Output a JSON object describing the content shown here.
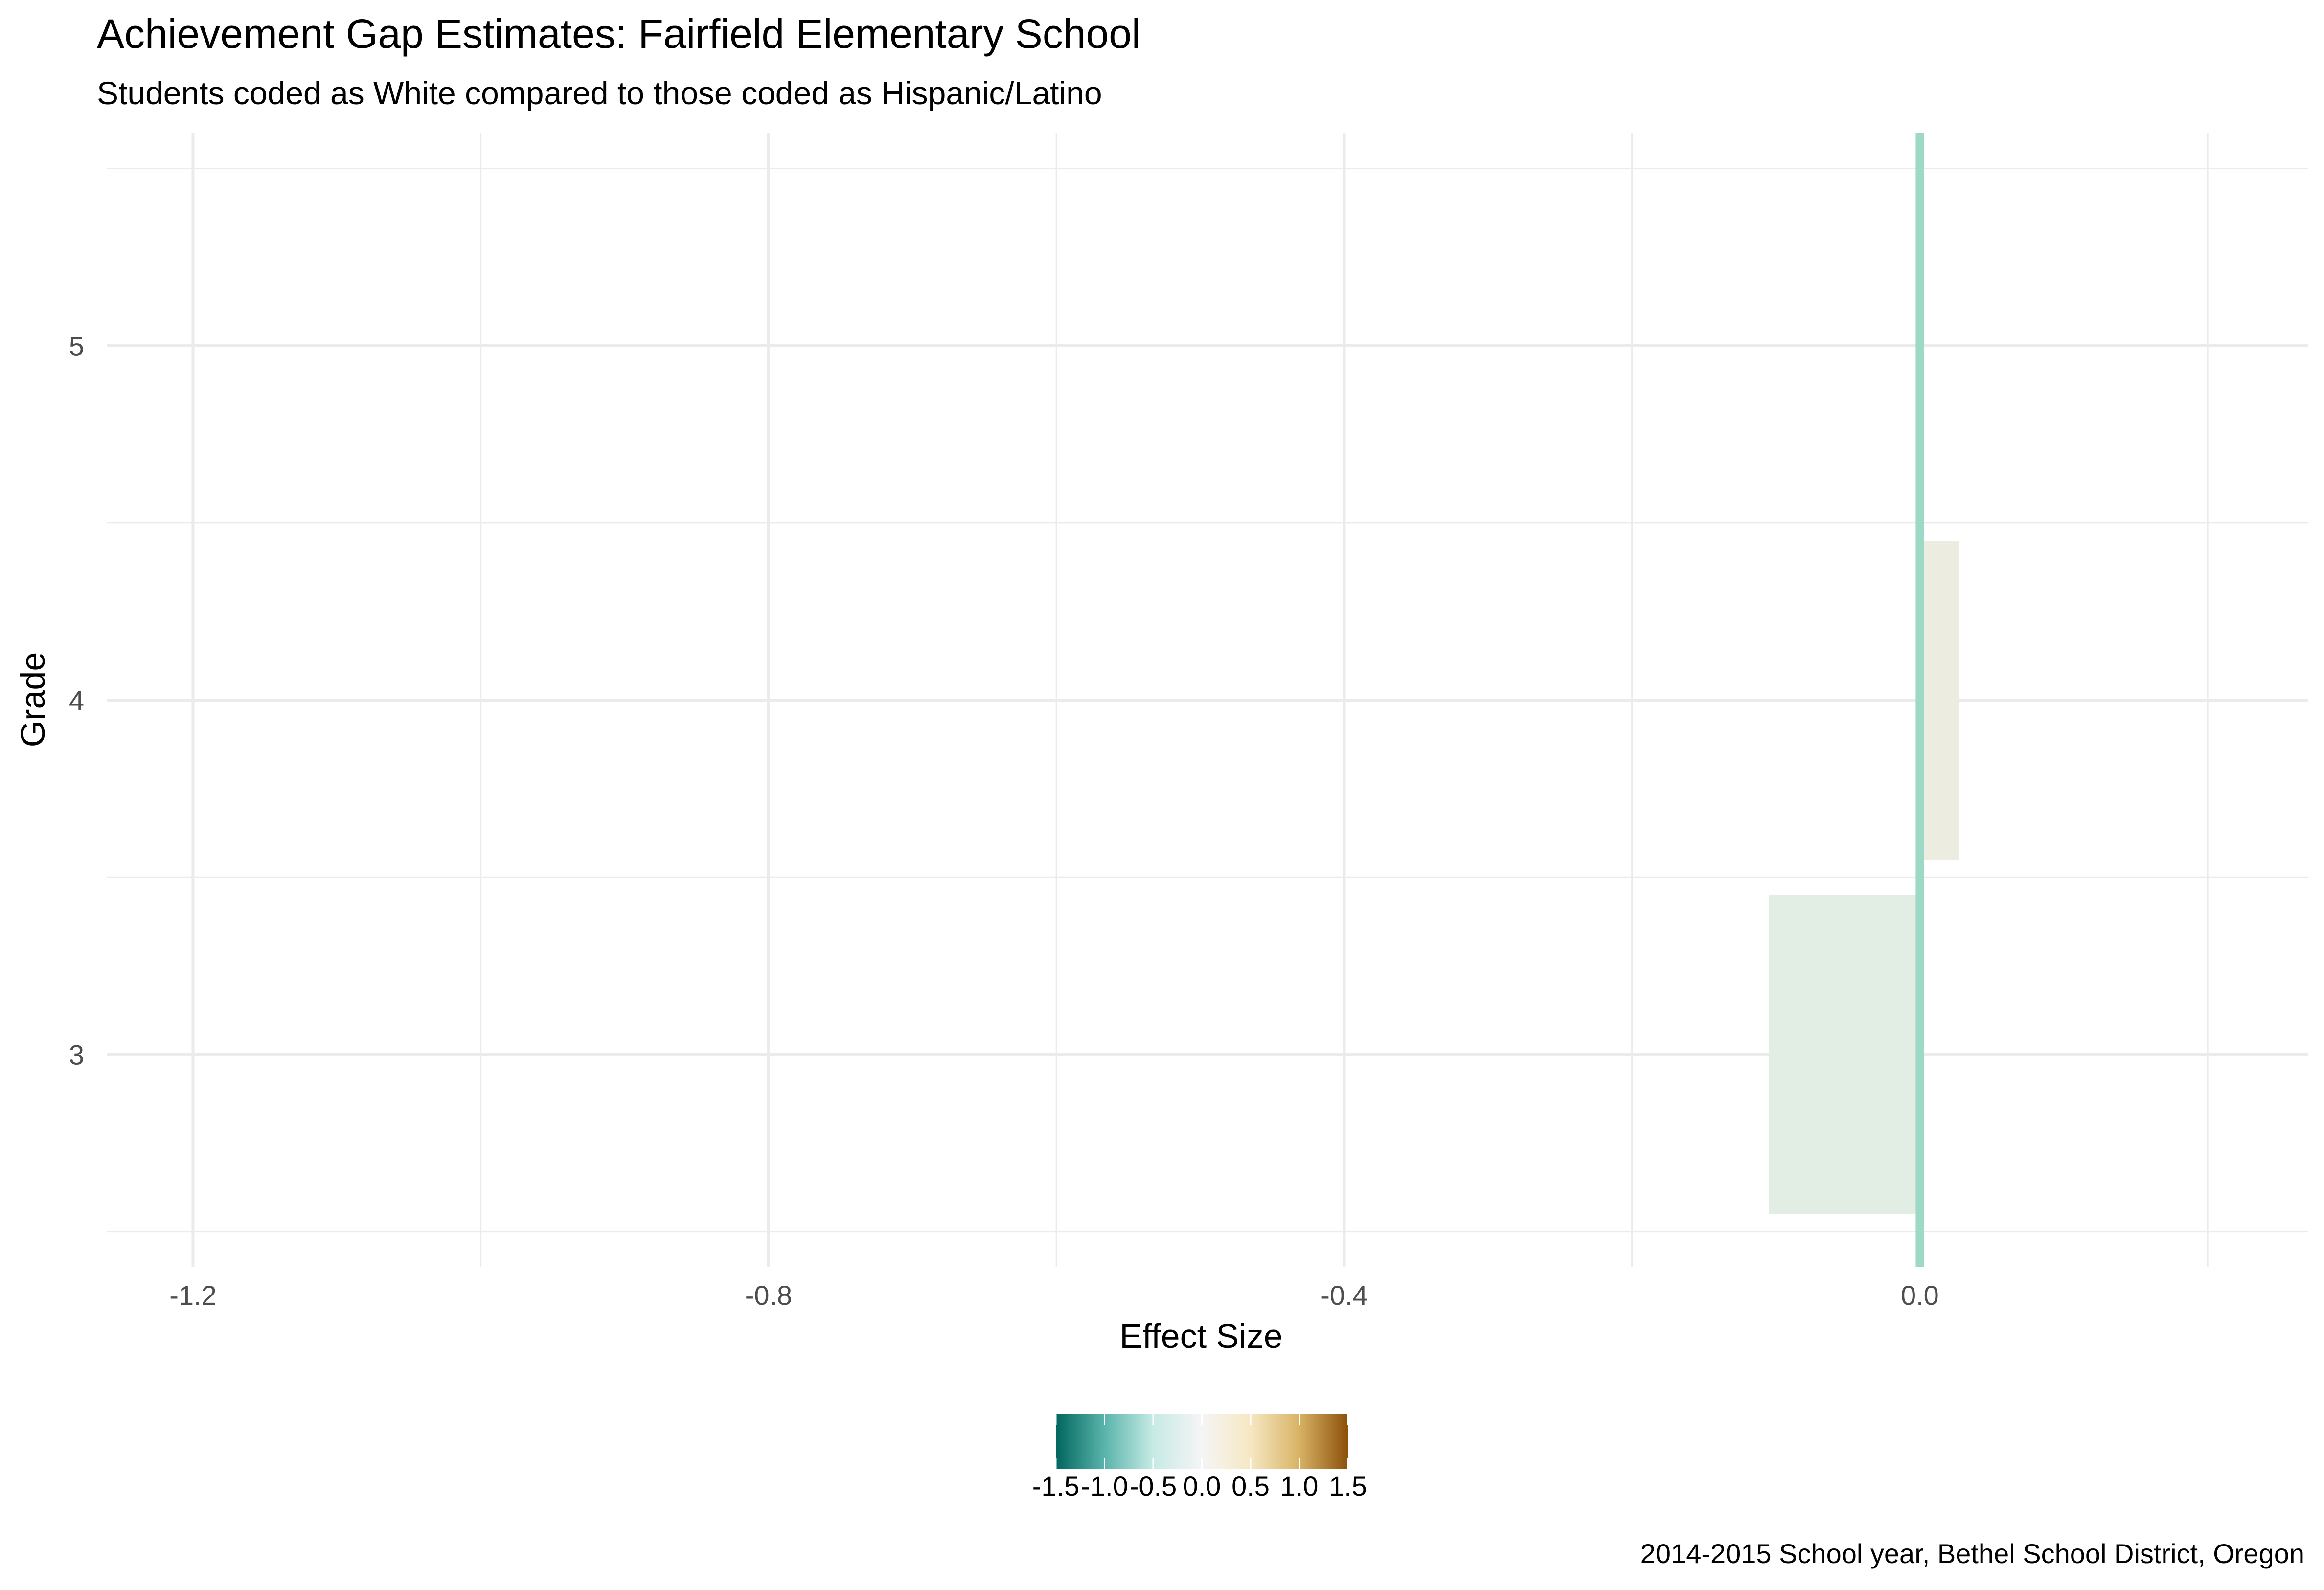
{
  "chart_data": {
    "type": "bar",
    "orientation": "horizontal",
    "title": "Achievement Gap Estimates: Fairfield Elementary School",
    "subtitle": "Students coded as White compared to those coded as Hispanic/Latino",
    "xlabel": "Effect Size",
    "ylabel": "Grade",
    "caption": "2014-2015 School year, Bethel School District, Oregon",
    "categories": [
      "3",
      "4",
      "5"
    ],
    "values": [
      -0.105,
      0.027,
      null
    ],
    "xlim": [
      -1.26,
      0.27
    ],
    "ylim": [
      2.4,
      5.6
    ],
    "x_ticks": [
      -1.2,
      -0.8,
      -0.4,
      0.0
    ],
    "x_tick_labels": [
      "-1.2",
      "-0.8",
      "-0.4",
      "0.0"
    ],
    "y_ticks": [
      3,
      4,
      5
    ],
    "y_tick_labels": [
      "3",
      "4",
      "5"
    ],
    "reference_line_x": 0,
    "grid": true,
    "colors": {
      "bar_grade_3": "#e2eee4",
      "bar_grade_4": "#ecede0",
      "reference_line": "#9ed9c8",
      "grid": "#ebebeb"
    },
    "legend": {
      "placement": "bottom",
      "type": "colorbar",
      "range": [
        -1.5,
        1.5
      ],
      "tick_values": [
        -1.5,
        -1.0,
        -0.5,
        0.0,
        0.5,
        1.0,
        1.5
      ],
      "tick_labels": [
        "-1.5",
        "-1.0",
        "-0.5",
        "0.0",
        "0.5",
        "1.0",
        "1.5"
      ],
      "palette": [
        "#01665e",
        "#5ab4ac",
        "#c7eae5",
        "#f5f5f5",
        "#f6e8c3",
        "#d8b365",
        "#8c510a"
      ]
    }
  }
}
